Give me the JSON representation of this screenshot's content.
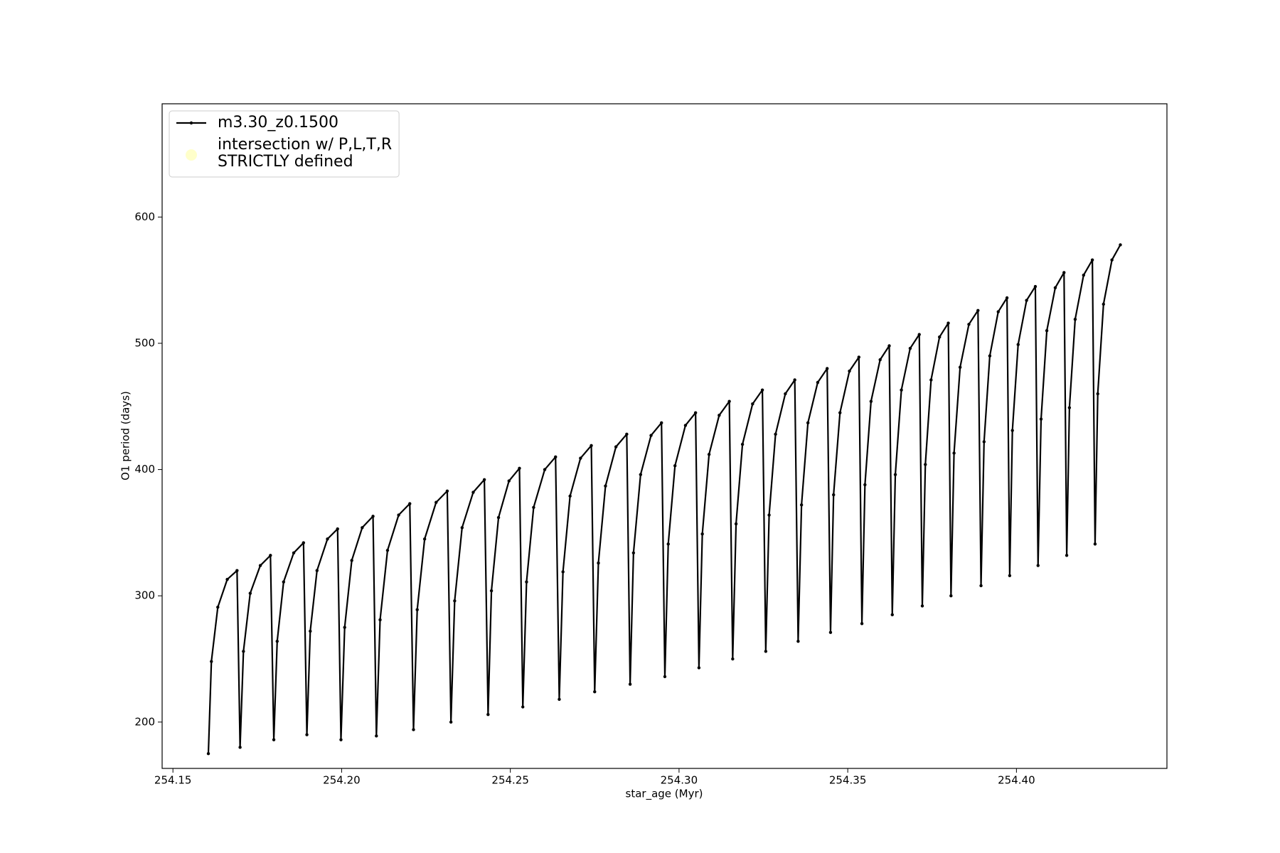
{
  "chart_data": {
    "type": "line",
    "xlabel": "star_age (Myr)",
    "ylabel": "O1 period (days)",
    "xlim": [
      254.1468,
      254.4446
    ],
    "ylim": [
      163.3,
      689.7
    ],
    "xticks": [
      254.15,
      {
        "value": 254.2,
        "label": "254.20"
      },
      254.25,
      {
        "value": 254.3,
        "label": "254.30"
      },
      254.35,
      {
        "value": 254.4,
        "label": "254.40"
      }
    ],
    "yticks": [
      200,
      300,
      400,
      500,
      600
    ],
    "grid": false,
    "legend": "upper left",
    "series": [
      {
        "name": "m3.30_z0.1500",
        "color": "#000000",
        "marker": "dot",
        "x": [
          254.1605,
          254.1614,
          254.1633,
          254.1661,
          254.169,
          254.1699,
          254.1709,
          254.1729,
          254.1759,
          254.1789,
          254.1799,
          254.1809,
          254.1828,
          254.1858,
          254.1887,
          254.1897,
          254.1907,
          254.1927,
          254.1958,
          254.1988,
          254.1998,
          254.2009,
          254.203,
          254.2061,
          254.2093,
          254.2103,
          254.2114,
          254.2136,
          254.2169,
          254.2202,
          254.2213,
          254.2224,
          254.2246,
          254.228,
          254.2313,
          254.2324,
          254.2335,
          254.2357,
          254.239,
          254.2423,
          254.2434,
          254.2444,
          254.2465,
          254.2496,
          254.2527,
          254.2537,
          254.2548,
          254.2569,
          254.2602,
          254.2634,
          254.2645,
          254.2656,
          254.2677,
          254.2708,
          254.274,
          254.275,
          254.2761,
          254.2782,
          254.2813,
          254.2845,
          254.2855,
          254.2865,
          254.2886,
          254.2917,
          254.2948,
          254.2958,
          254.2968,
          254.2988,
          254.3019,
          254.3049,
          254.3059,
          254.3069,
          254.3089,
          254.3119,
          254.3149,
          254.3159,
          254.3169,
          254.3188,
          254.3218,
          254.3247,
          254.3257,
          254.3267,
          254.3286,
          254.3315,
          254.3343,
          254.3353,
          254.3363,
          254.3382,
          254.3411,
          254.3439,
          254.3449,
          254.3458,
          254.3477,
          254.3505,
          254.3533,
          254.3542,
          254.3551,
          254.3569,
          254.3596,
          254.3623,
          254.3632,
          254.3641,
          254.3659,
          254.3685,
          254.3712,
          254.3721,
          254.373,
          254.3747,
          254.3772,
          254.3798,
          254.3806,
          254.3815,
          254.3833,
          254.3859,
          254.3886,
          254.3895,
          254.3904,
          254.3921,
          254.3946,
          254.3972,
          254.398,
          254.3988,
          254.4005,
          254.403,
          254.4056,
          254.4064,
          254.4073,
          254.409,
          254.4115,
          254.4141,
          254.4149,
          254.4157,
          254.4174,
          254.4199,
          254.4225,
          254.4233,
          254.4241,
          254.4258,
          254.4283,
          254.4308
        ],
        "values": [
          175,
          248,
          291,
          313,
          320,
          180,
          256,
          302,
          324,
          332,
          186,
          264,
          311,
          334,
          342,
          190,
          272,
          320,
          345,
          353,
          186,
          275,
          328,
          354,
          363,
          189,
          281,
          336,
          364,
          373,
          194,
          289,
          345,
          374,
          383,
          200,
          296,
          354,
          382,
          392,
          206,
          304,
          362,
          391,
          401,
          212,
          311,
          370,
          400,
          410,
          218,
          319,
          379,
          409,
          419,
          224,
          326,
          387,
          418,
          428,
          230,
          334,
          396,
          427,
          437,
          236,
          341,
          403,
          435,
          445,
          243,
          349,
          412,
          443,
          454,
          250,
          357,
          420,
          452,
          463,
          256,
          364,
          428,
          460,
          471,
          264,
          372,
          437,
          469,
          480,
          271,
          380,
          445,
          478,
          489,
          278,
          388,
          454,
          487,
          498,
          285,
          396,
          463,
          496,
          507,
          292,
          404,
          471,
          505,
          516,
          300,
          413,
          481,
          515,
          526,
          308,
          422,
          490,
          525,
          536,
          316,
          431,
          499,
          534,
          545,
          324,
          440,
          510,
          544,
          556,
          332,
          449,
          519,
          554,
          566,
          341,
          460,
          531,
          566,
          578
        ]
      },
      {
        "name": "intersection w/ P,L,T,R\nSTRICTLY defined",
        "color": "#ffffb3",
        "marker": "circle",
        "x": [],
        "values": []
      }
    ]
  }
}
